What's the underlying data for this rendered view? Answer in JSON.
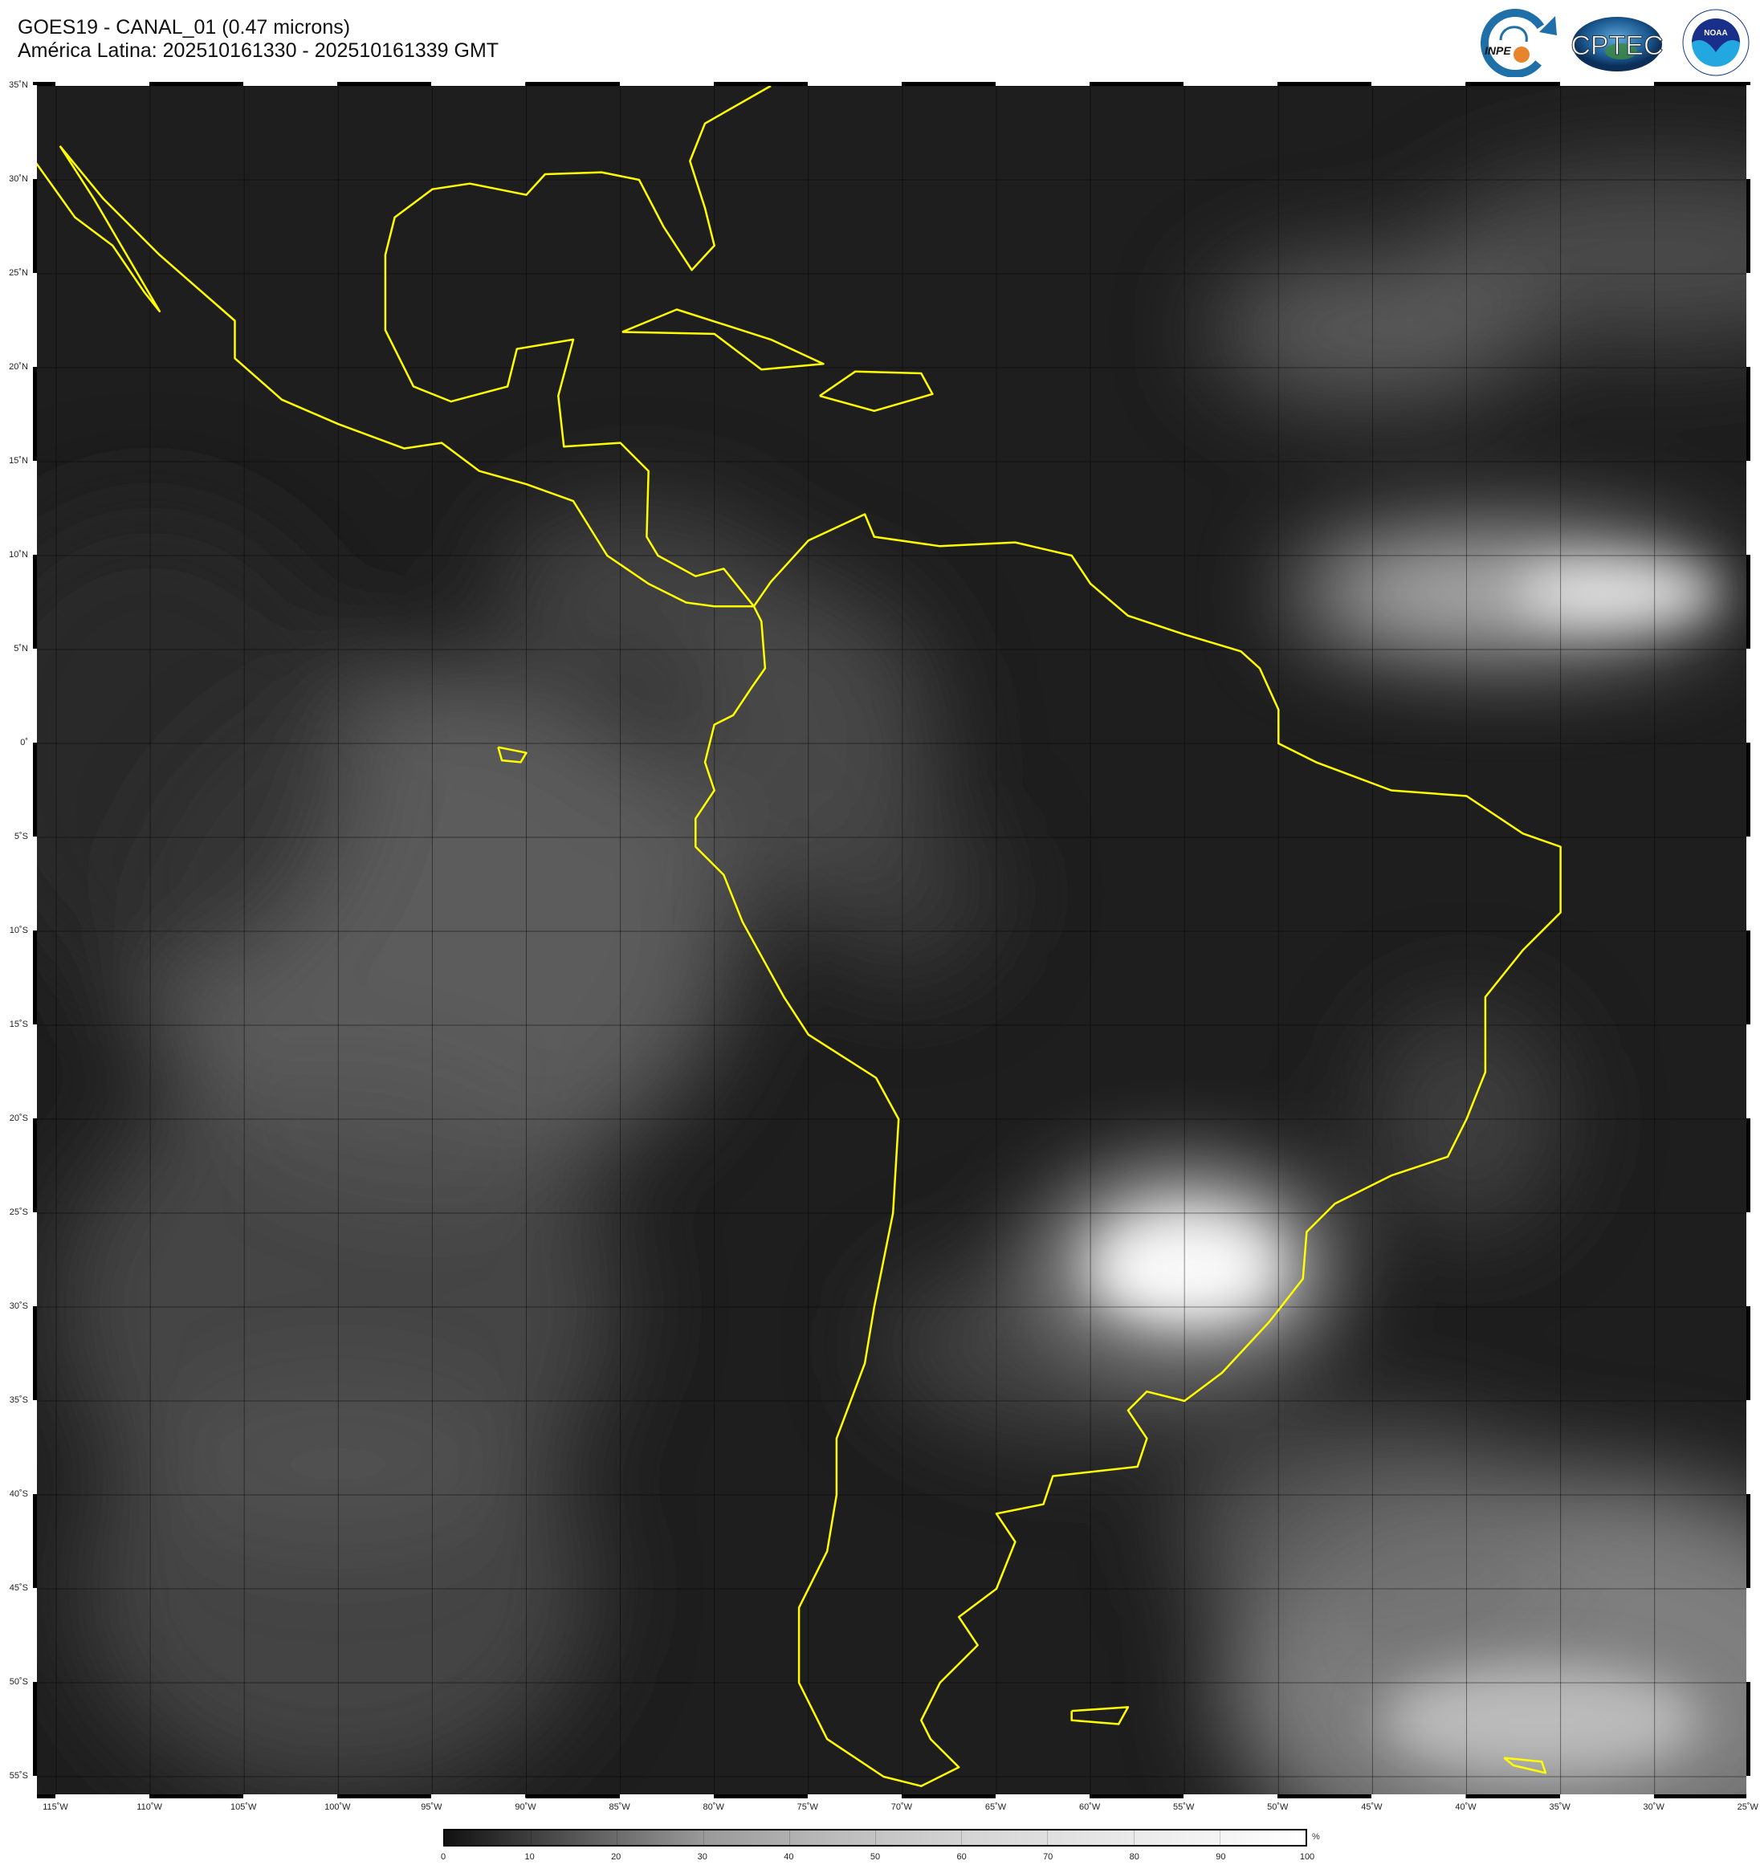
{
  "header": {
    "title": "GOES19 - CANAL_01 (0.47 microns)",
    "subtitle": "América Latina: 202510161330 - 202510161339 GMT"
  },
  "logos": {
    "inpe": "INPE",
    "cptec": "CPTEC",
    "noaa": "NOAA",
    "noaa_ring": "NATIONAL OCEANIC AND ATMOSPHERIC ADMINISTRATION · U.S. DEPARTMENT OF COMMERCE"
  },
  "map": {
    "latitude_labels": [
      "35˚N",
      "30˚N",
      "25˚N",
      "20˚N",
      "15˚N",
      "10˚N",
      "5˚N",
      "0˚",
      "5˚S",
      "10˚S",
      "15˚S",
      "20˚S",
      "25˚S",
      "30˚S",
      "35˚S",
      "40˚S",
      "45˚S",
      "50˚S",
      "55˚S"
    ],
    "longitude_labels": [
      "115˚W",
      "110˚W",
      "105˚W",
      "100˚W",
      "95˚W",
      "90˚W",
      "85˚W",
      "80˚W",
      "75˚W",
      "70˚W",
      "65˚W",
      "60˚W",
      "55˚W",
      "50˚W",
      "45˚W",
      "40˚W",
      "35˚W",
      "30˚W",
      "25˚W"
    ],
    "lat_range": [
      -55,
      35
    ],
    "lon_range": [
      -115,
      -25
    ],
    "coastline_color": "#ffff00",
    "background_color": "#1e1e1e"
  },
  "colorbar": {
    "labels": [
      "0",
      "10",
      "20",
      "30",
      "40",
      "50",
      "60",
      "70",
      "80",
      "90",
      "100"
    ],
    "unit": "%",
    "range": [
      0,
      100
    ]
  }
}
